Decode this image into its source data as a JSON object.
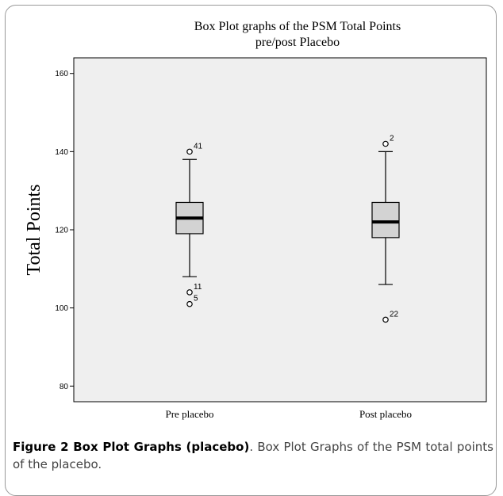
{
  "chart_data": {
    "type": "box",
    "title_line1": "Box Plot graphs of the PSM Total Points",
    "title_line2": "pre/post Placebo",
    "ylabel": "Total Points",
    "xlabel": "",
    "ylim": [
      76,
      164
    ],
    "yticks": [
      80,
      100,
      120,
      140,
      160
    ],
    "categories": [
      "Pre placebo",
      "Post placebo"
    ],
    "boxes": [
      {
        "min": 108,
        "q1": 119,
        "median": 123,
        "q3": 127,
        "max": 138,
        "outliers": [
          {
            "value": 140,
            "label": "41"
          },
          {
            "value": 104,
            "label": "11"
          },
          {
            "value": 101,
            "label": "5"
          }
        ]
      },
      {
        "min": 106,
        "q1": 118,
        "median": 122,
        "q3": 127,
        "max": 140,
        "outliers": [
          {
            "value": 142,
            "label": "2"
          },
          {
            "value": 97,
            "label": "22"
          }
        ]
      }
    ],
    "plot_background": "#efefef",
    "box_fill": "#d3d3d3"
  },
  "caption": {
    "figure_label": "Figure 2 Box Plot Graphs (placebo)",
    "text": ". Box Plot Graphs of the PSM total points of the placebo."
  }
}
